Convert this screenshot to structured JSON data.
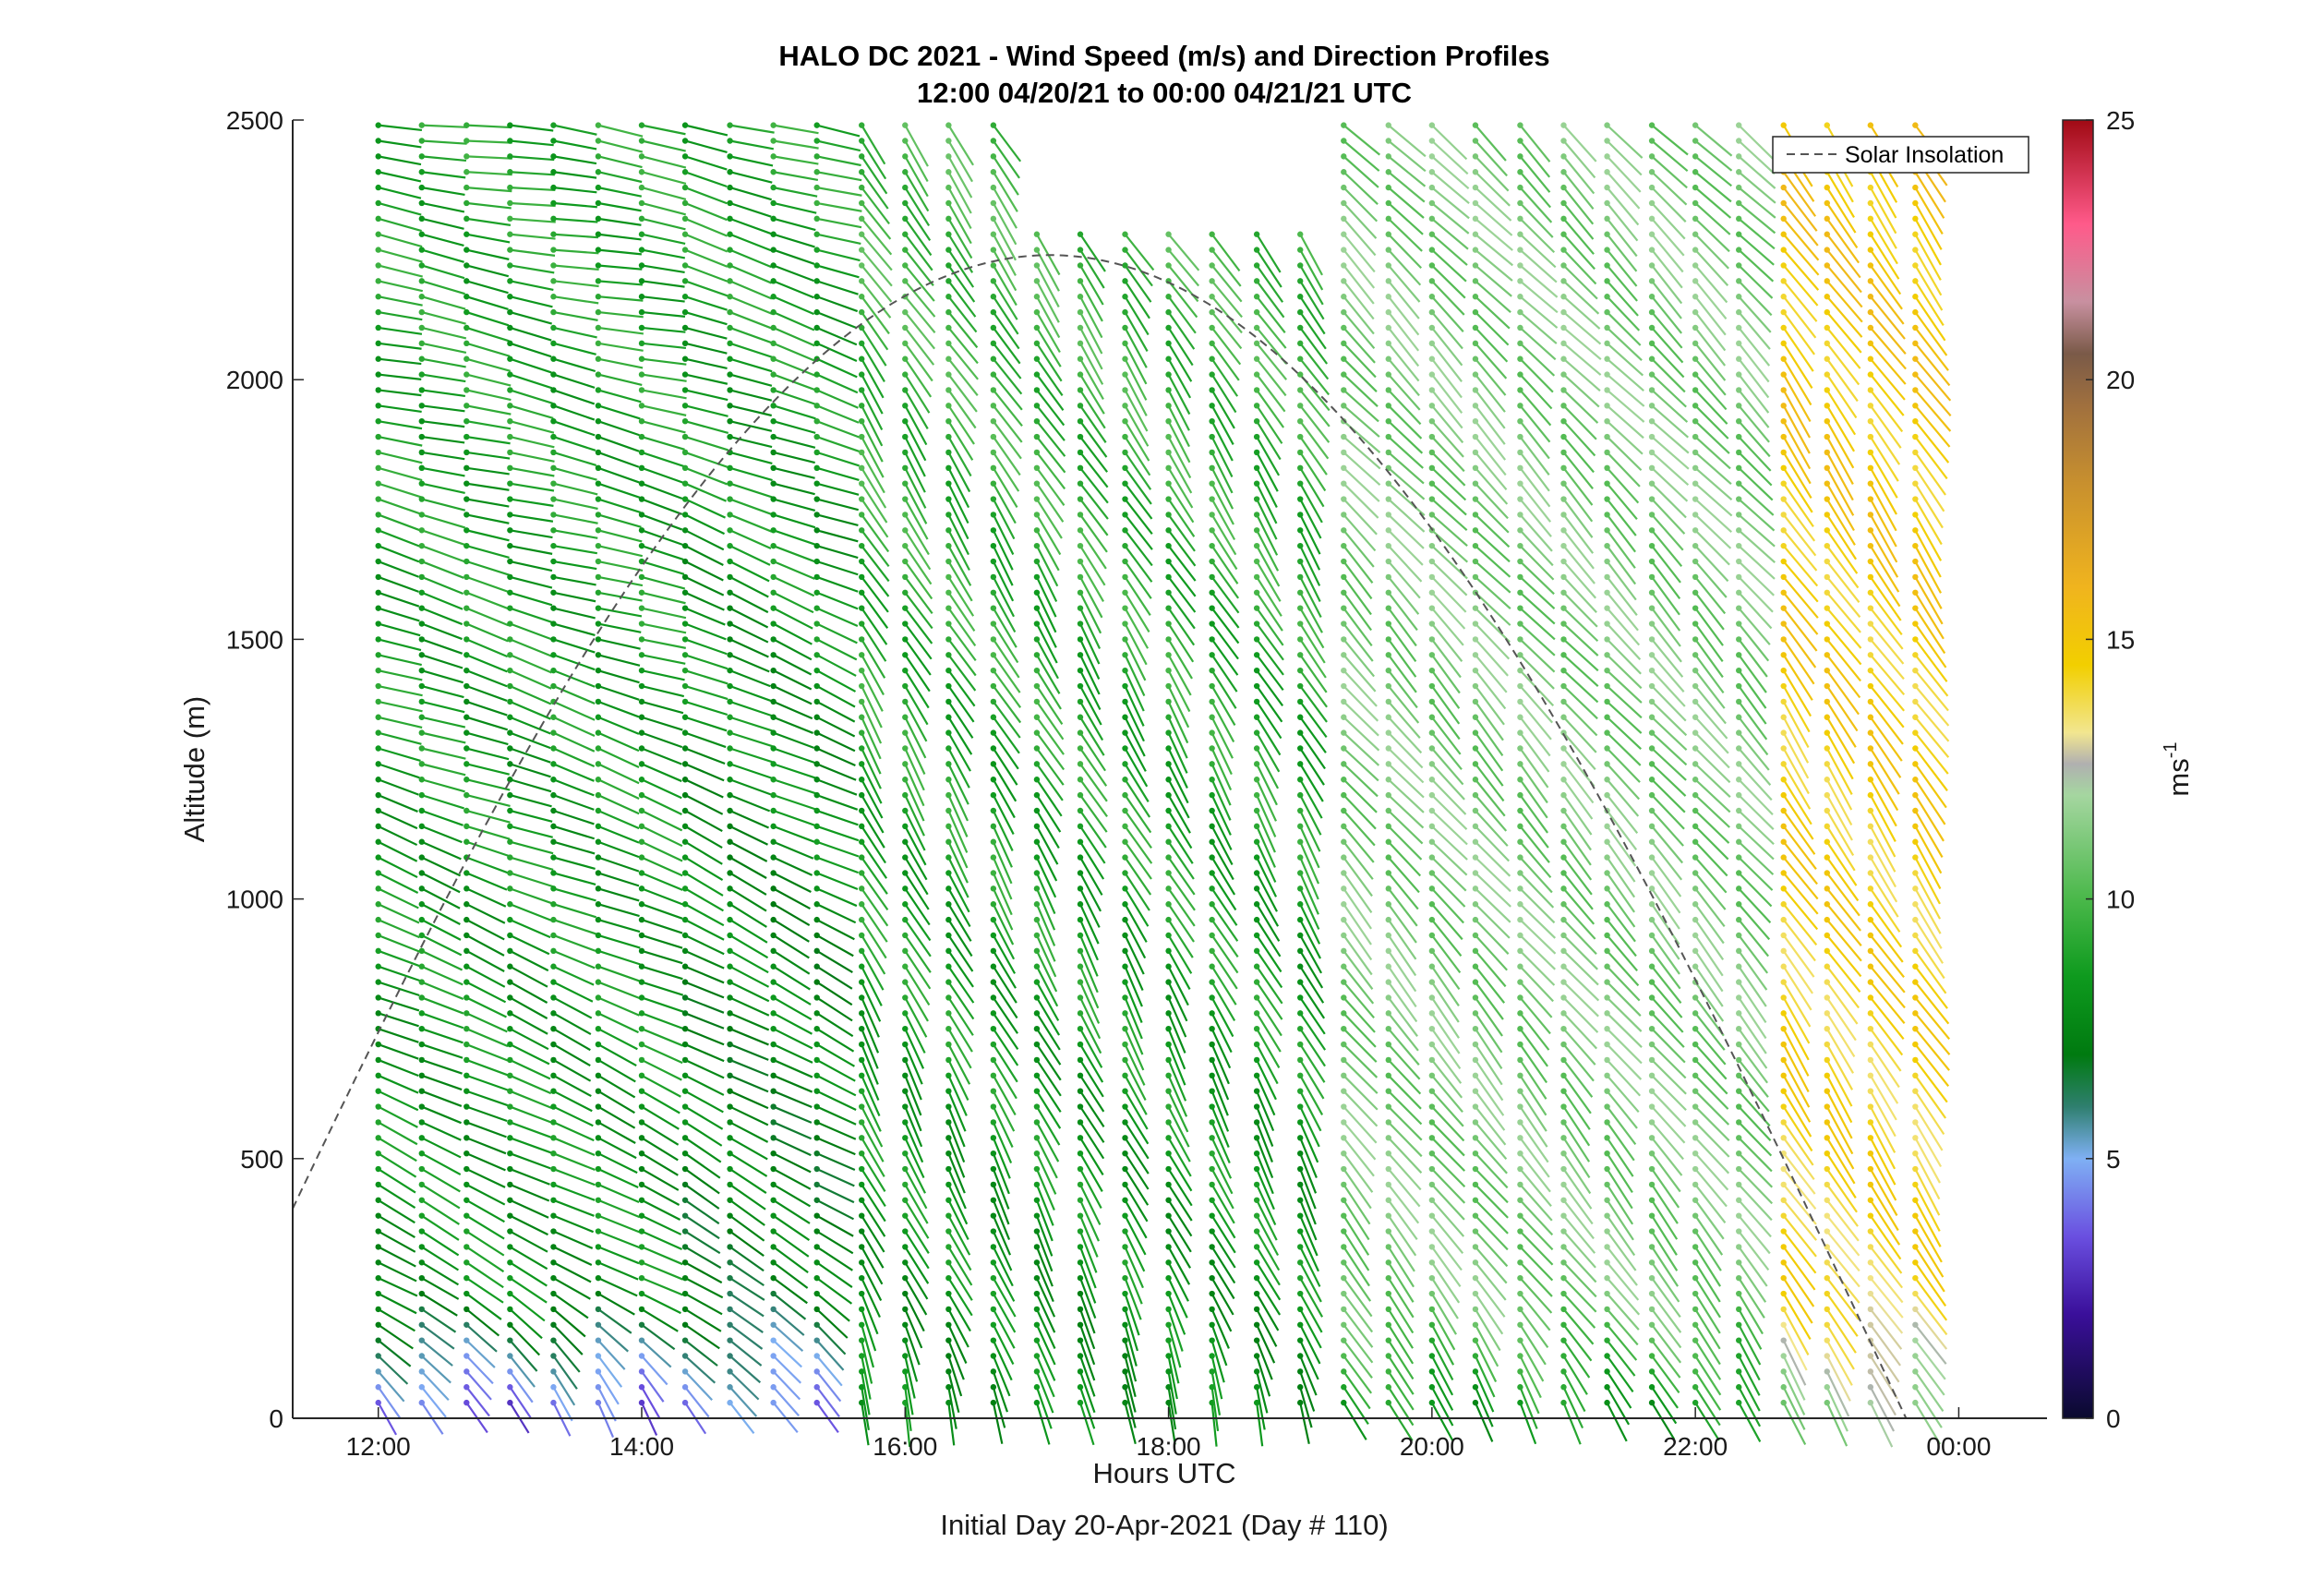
{
  "chart_data": {
    "type": "wind-barb-profile",
    "title": "HALO DC 2021 - Wind Speed (m/s) and Direction Profiles",
    "subtitle": "12:00 04/20/21 to 00:00 04/21/21  UTC",
    "xlabel": "Hours UTC",
    "footer": "Initial Day 20-Apr-2021 (Day # 110)",
    "ylabel": "Altitude (m)",
    "x_ticks": [
      "12:00",
      "14:00",
      "16:00",
      "18:00",
      "20:00",
      "22:00",
      "00:00"
    ],
    "x_tick_hours": [
      12,
      14,
      16,
      18,
      20,
      22,
      24
    ],
    "xlim_hours": [
      11.35,
      24.67
    ],
    "y_ticks": [
      "0",
      "500",
      "1000",
      "1500",
      "2000",
      "2500"
    ],
    "y_tick_values": [
      0,
      500,
      1000,
      1500,
      2000,
      2500
    ],
    "ylim": [
      0,
      2500
    ],
    "colorbar": {
      "label_base": "ms",
      "label_exp": "-1",
      "ticks": [
        "0",
        "5",
        "10",
        "15",
        "20",
        "25"
      ],
      "tick_values": [
        0,
        5,
        10,
        15,
        20,
        25
      ],
      "range": [
        0,
        25
      ],
      "stops": [
        {
          "v": 0,
          "c": "#0a0a2e"
        },
        {
          "v": 2,
          "c": "#3a0f9a"
        },
        {
          "v": 3.5,
          "c": "#6a4fe0"
        },
        {
          "v": 5,
          "c": "#7fb0f4"
        },
        {
          "v": 6,
          "c": "#2f7f6f"
        },
        {
          "v": 7,
          "c": "#007a10"
        },
        {
          "v": 8.5,
          "c": "#0e9a1e"
        },
        {
          "v": 10,
          "c": "#4ab84a"
        },
        {
          "v": 12,
          "c": "#a5d6a0"
        },
        {
          "v": 12.6,
          "c": "#b0b0b0"
        },
        {
          "v": 13.2,
          "c": "#f2e690"
        },
        {
          "v": 14.5,
          "c": "#f2cf00"
        },
        {
          "v": 16,
          "c": "#f0b41e"
        },
        {
          "v": 18,
          "c": "#c8902e"
        },
        {
          "v": 19.5,
          "c": "#a0703e"
        },
        {
          "v": 20.5,
          "c": "#7a5a48"
        },
        {
          "v": 21.5,
          "c": "#c890a0"
        },
        {
          "v": 23,
          "c": "#ff5a8a"
        },
        {
          "v": 25,
          "c": "#a00a14"
        }
      ]
    },
    "legend": {
      "label": "Solar Insolation",
      "position": "top-right"
    },
    "solar_insolation": {
      "peak_hour": 17.1,
      "peak_altitude": 2240,
      "zero_hour": 23.6
    },
    "profile_times_hours": [
      12.0,
      12.33,
      12.67,
      13.0,
      13.33,
      13.67,
      14.0,
      14.33,
      14.67,
      15.0,
      15.33,
      15.67,
      16.0,
      16.33,
      16.67,
      17.0,
      17.33,
      17.67,
      18.0,
      18.33,
      18.67,
      19.0,
      19.33,
      19.67,
      20.0,
      20.33,
      20.67,
      21.0,
      21.33,
      21.67,
      22.0,
      22.33,
      22.67,
      23.0,
      23.33,
      23.67
    ],
    "profile_altitudes_m": [
      30,
      60,
      90,
      120,
      150,
      180,
      210,
      240,
      270,
      300,
      330,
      360,
      390,
      420,
      450,
      480,
      510,
      540,
      570,
      600,
      630,
      660,
      690,
      720,
      750,
      780,
      810,
      840,
      870,
      900,
      930,
      960,
      990,
      1020,
      1050,
      1080,
      1110,
      1140,
      1170,
      1200,
      1230,
      1260,
      1290,
      1320,
      1350,
      1380,
      1410,
      1440,
      1470,
      1500,
      1530,
      1560,
      1590,
      1620,
      1650,
      1680,
      1710,
      1740,
      1770,
      1800,
      1830,
      1860,
      1890,
      1920,
      1950,
      1980,
      2010,
      2040,
      2070,
      2100,
      2130,
      2160,
      2190,
      2220,
      2250,
      2280,
      2310,
      2340,
      2370,
      2400,
      2430,
      2460,
      2490
    ],
    "regimes": [
      {
        "t_range": [
          12.0,
          14.0
        ],
        "low_alt_speed": 3,
        "low_alt_to_deg": 205,
        "mid_speed": 8,
        "upper_to_deg": 262,
        "upper_speed": 9
      },
      {
        "t_range": [
          14.0,
          15.5
        ],
        "low_alt_speed": 4,
        "low_alt_to_deg": 210,
        "mid_speed": 7,
        "upper_to_deg": 255,
        "upper_speed": 9
      },
      {
        "t_range": [
          15.5,
          19.0
        ],
        "low_alt_speed": 8,
        "low_alt_to_deg": 190,
        "mid_speed": 8,
        "upper_to_deg": 215,
        "upper_speed": 10
      },
      {
        "t_range": [
          19.0,
          22.5
        ],
        "low_alt_speed": 8,
        "low_alt_to_deg": 205,
        "mid_speed": 11,
        "upper_to_deg": 225,
        "upper_speed": 11
      },
      {
        "t_range": [
          22.5,
          23.67
        ],
        "low_alt_speed": 11,
        "low_alt_to_deg": 210,
        "mid_speed": 14,
        "upper_to_deg": 215,
        "upper_speed": 15
      }
    ],
    "data_gap": {
      "t_range": [
        17.0,
        19.2
      ],
      "alt_range": [
        2300,
        2500
      ]
    }
  }
}
